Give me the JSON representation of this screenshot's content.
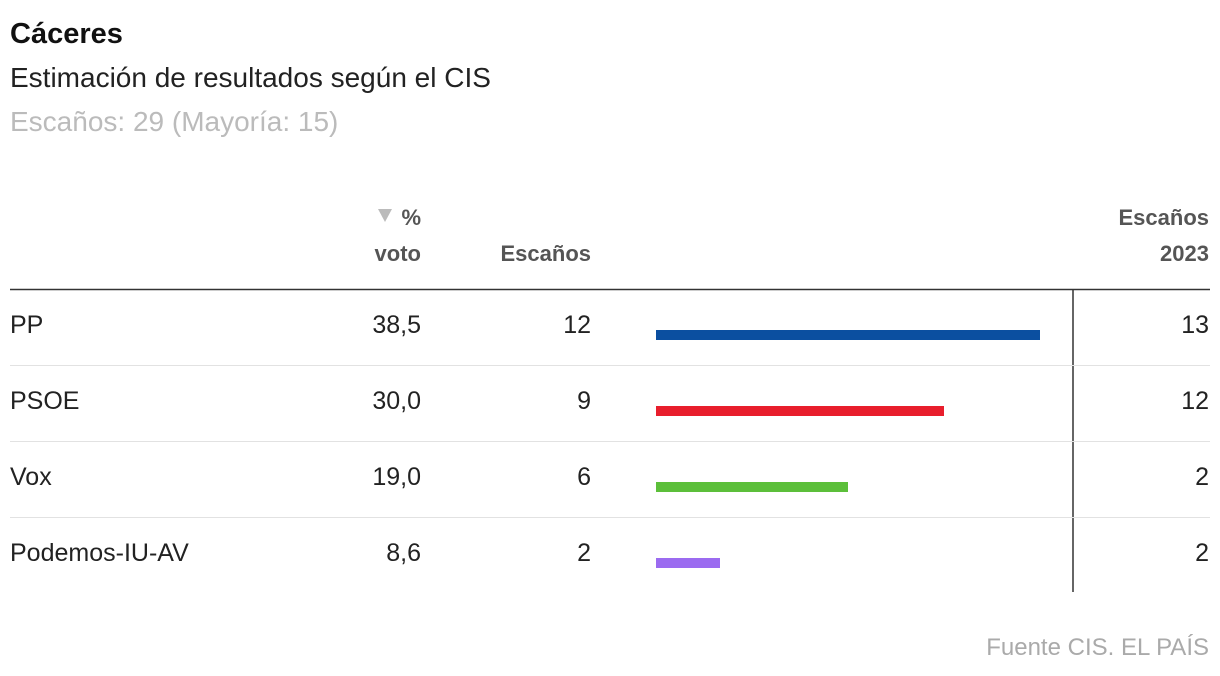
{
  "header": {
    "title": "Cáceres",
    "subtitle": "Estimación de resultados según el CIS",
    "note": "Escaños: 29 (Mayoría: 15)"
  },
  "table": {
    "columns": {
      "vote": [
        "%",
        "voto"
      ],
      "seats": [
        "Escaños"
      ],
      "seats_2023": [
        "Escaños",
        "2023"
      ]
    },
    "rows": [
      {
        "party": "PP",
        "vote": "38,5",
        "seats": 12,
        "color": "#0b4fa0",
        "seats_2023": 13
      },
      {
        "party": "PSOE",
        "vote": "30,0",
        "seats": 9,
        "color": "#e81e2c",
        "seats_2023": 12
      },
      {
        "party": "Vox",
        "vote": "19,0",
        "seats": 6,
        "color": "#5cbf3a",
        "seats_2023": 2
      },
      {
        "party": "Podemos-IU-AV",
        "vote": "8,6",
        "seats": 2,
        "color": "#9b6bf0",
        "seats_2023": 2
      }
    ]
  },
  "footer": {
    "source": "Fuente CIS. EL PAÍS"
  }
}
